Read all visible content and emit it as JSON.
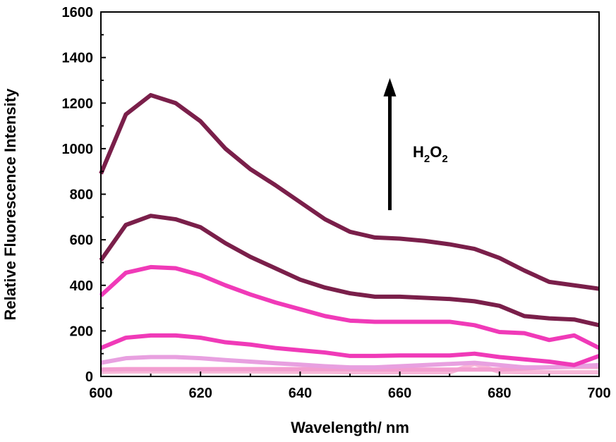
{
  "chart_data": {
    "type": "line",
    "title": "",
    "xlabel": "Wavelength/ nm",
    "ylabel": "Relative Fluorescence Intensity",
    "xlim": [
      600,
      700
    ],
    "ylim": [
      0,
      1600
    ],
    "x_ticks": [
      "600",
      "620",
      "640",
      "660",
      "680",
      "700"
    ],
    "y_ticks": [
      "0",
      "200",
      "400",
      "600",
      "800",
      "1000",
      "1200",
      "1400",
      "1600"
    ],
    "grid": false,
    "legend": "none",
    "annotation": {
      "base": "H",
      "sub1": "2",
      "mid": "O",
      "sub2": "2",
      "arrow": "up",
      "arrow_from_y": 730,
      "arrow_to_y": 1310,
      "arrow_x": 658
    },
    "x": [
      600,
      605,
      610,
      615,
      620,
      625,
      630,
      635,
      640,
      645,
      650,
      655,
      660,
      665,
      670,
      675,
      680,
      685,
      690,
      695,
      700
    ],
    "series": [
      {
        "color": "#f8b8d8",
        "values": [
          20,
          22,
          22,
          22,
          22,
          22,
          22,
          21,
          20,
          20,
          18,
          18,
          18,
          18,
          18,
          55,
          20,
          18,
          18,
          18,
          18
        ]
      },
      {
        "color": "#f39ed0",
        "values": [
          30,
          32,
          32,
          32,
          32,
          32,
          32,
          32,
          32,
          32,
          32,
          30,
          30,
          30,
          30,
          30,
          30,
          35,
          40,
          42,
          42
        ]
      },
      {
        "color": "#e8a0e0",
        "values": [
          60,
          80,
          85,
          85,
          80,
          72,
          65,
          58,
          52,
          45,
          40,
          40,
          45,
          50,
          55,
          60,
          50,
          40,
          40,
          45,
          50
        ]
      },
      {
        "color": "#f03ab8",
        "values": [
          125,
          170,
          180,
          180,
          170,
          150,
          140,
          125,
          115,
          105,
          90,
          90,
          92,
          92,
          92,
          100,
          85,
          75,
          65,
          50,
          90
        ]
      },
      {
        "color": "#f03ab8",
        "values": [
          355,
          455,
          480,
          475,
          445,
          400,
          360,
          325,
          295,
          265,
          245,
          240,
          240,
          240,
          240,
          225,
          195,
          190,
          160,
          180,
          125
        ]
      },
      {
        "color": "#7a1f4a",
        "values": [
          510,
          665,
          705,
          690,
          655,
          585,
          525,
          475,
          425,
          390,
          365,
          350,
          350,
          345,
          340,
          330,
          310,
          265,
          255,
          250,
          225
        ]
      },
      {
        "color": "#7a1f4a",
        "values": [
          890,
          1150,
          1235,
          1200,
          1120,
          1000,
          910,
          840,
          765,
          690,
          635,
          610,
          605,
          595,
          580,
          560,
          520,
          465,
          415,
          400,
          385
        ]
      }
    ]
  }
}
